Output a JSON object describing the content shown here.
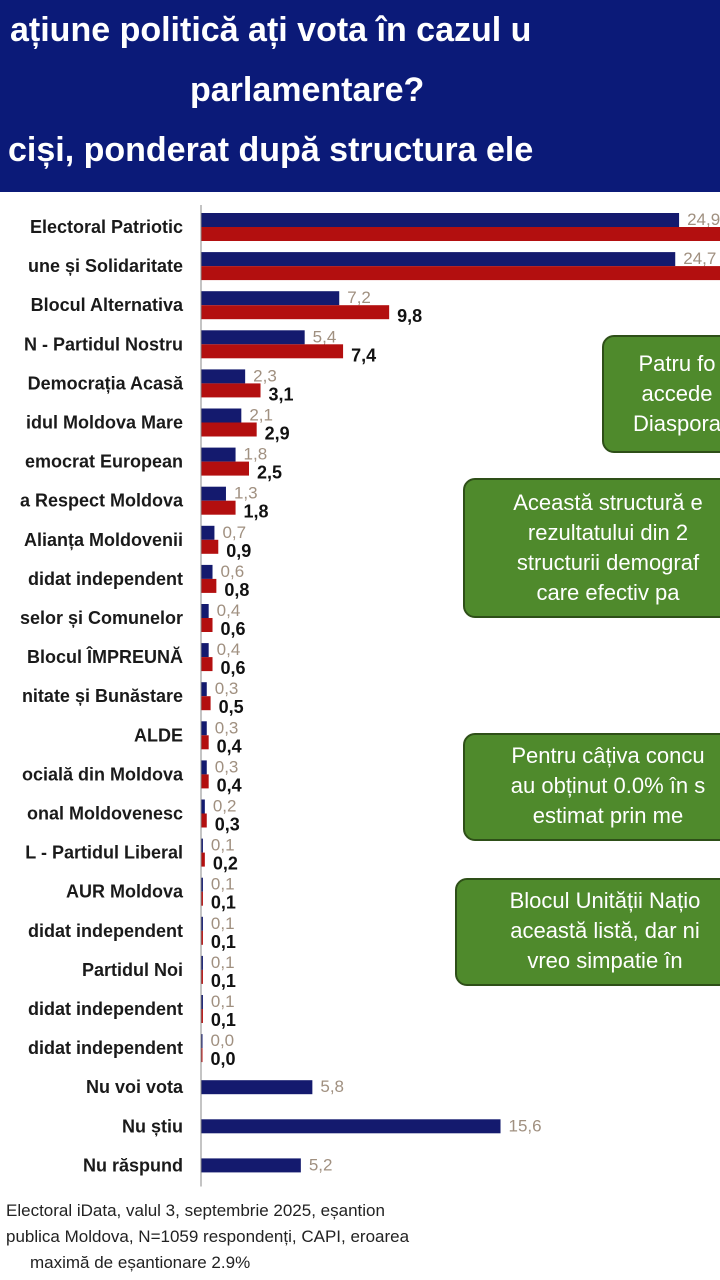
{
  "header": {
    "line1": "ațiune politică ați vota în cazul u",
    "line2": "parlamentare?",
    "line3": "ciși, ponderat după structura ele"
  },
  "chart_data": {
    "type": "bar",
    "orientation": "horizontal",
    "categories": [
      "Electoral Patriotic",
      "une și Solidaritate",
      "Blocul Alternativa",
      "N - Partidul Nostru",
      "Democrația Acasă",
      "idul Moldova Mare",
      "emocrat European",
      "a Respect Moldova",
      "Alianța Moldovenii",
      "didat independent",
      "selor și Comunelor",
      "Blocul ÎMPREUNĂ",
      "nitate și Bunăstare",
      "ALDE",
      "ocială din Moldova",
      "onal Moldovenesc",
      "L - Partidul Liberal",
      "AUR Moldova",
      "didat independent",
      "Partidul Noi",
      "didat independent",
      "didat independent",
      "Nu voi vota",
      "Nu știu",
      "Nu răspund"
    ],
    "series": [
      {
        "color": "#141a6e",
        "labels": [
          "24,9",
          "24,7",
          "7,2",
          "5,4",
          "2,3",
          "2,1",
          "1,8",
          "1,3",
          "0,7",
          "0,6",
          "0,4",
          "0,4",
          "0,3",
          "0,3",
          "0,3",
          "0,2",
          "0,1",
          "0,1",
          "0,1",
          "0,1",
          "0,1",
          "0,0",
          "5,8",
          "15,6",
          "5,2"
        ],
        "values": [
          24.9,
          24.7,
          7.2,
          5.4,
          2.3,
          2.1,
          1.8,
          1.3,
          0.7,
          0.6,
          0.4,
          0.4,
          0.3,
          0.3,
          0.3,
          0.2,
          0.1,
          0.1,
          0.1,
          0.1,
          0.1,
          0.0,
          5.8,
          15.6,
          5.2
        ]
      },
      {
        "color": "#b30f0f",
        "labels": [
          null,
          null,
          "9,8",
          "7,4",
          "3,1",
          "2,9",
          "2,5",
          "1,8",
          "0,9",
          "0,8",
          "0,6",
          "0,6",
          "0,5",
          "0,4",
          "0,4",
          "0,3",
          "0,2",
          "0,1",
          "0,1",
          "0,1",
          "0,1",
          "0,0",
          null,
          null,
          null
        ],
        "values": [
          34.0,
          34.0,
          9.8,
          7.4,
          3.1,
          2.9,
          2.5,
          1.8,
          0.9,
          0.8,
          0.6,
          0.6,
          0.5,
          0.4,
          0.4,
          0.3,
          0.2,
          0.1,
          0.1,
          0.1,
          0.1,
          0.0,
          null,
          null,
          null
        ]
      }
    ]
  },
  "notes": [
    {
      "lines": [
        "Patru fo",
        "accede",
        "Diaspora"
      ]
    },
    {
      "lines": [
        "Această structură e",
        "rezultatului din 2",
        "structurii demograf",
        "care efectiv pa"
      ]
    },
    {
      "lines": [
        "Pentru câțiva concu",
        "au obținut 0.0% în s",
        "estimat prin me"
      ]
    },
    {
      "lines": [
        "Blocul Unității Națio",
        "această listă, dar ni",
        "vreo simpatie în"
      ]
    }
  ],
  "footnote": {
    "line1": "Electoral iData, valul 3, septembrie 2025, eșantion",
    "line2": "publica Moldova, N=1059 respondenți, CAPI, eroarea",
    "line3": "maximă de eșantionare 2.9%"
  }
}
